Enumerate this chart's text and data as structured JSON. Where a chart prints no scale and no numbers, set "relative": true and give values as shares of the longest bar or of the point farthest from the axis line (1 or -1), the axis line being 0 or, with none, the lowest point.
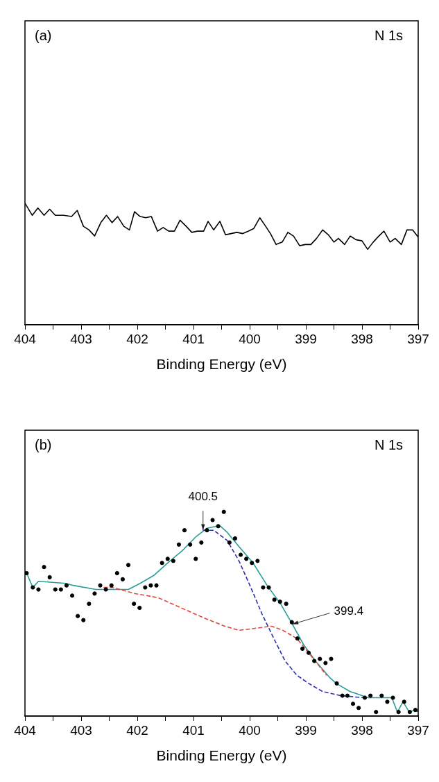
{
  "chart_data": [
    {
      "type": "line",
      "relative": true,
      "color": "#000000",
      "xlabel": "Binding Energy (eV)",
      "annotations": [
        "(a)",
        "N 1s"
      ],
      "xlim": [
        404,
        397
      ],
      "xticks": [
        404,
        {
          "value": 403.5,
          "label": null
        },
        403,
        {
          "value": 402.5,
          "label": null
        },
        402,
        {
          "value": 401.5,
          "label": null
        },
        401,
        {
          "value": 400.5,
          "label": null
        },
        400,
        {
          "value": 399.5,
          "label": null
        },
        399,
        {
          "value": 398.5,
          "label": null
        },
        398,
        {
          "value": 397.5,
          "label": null
        },
        397
      ],
      "x": [
        404.0,
        403.87,
        403.77,
        403.66,
        403.56,
        403.46,
        403.31,
        403.17,
        403.07,
        402.96,
        402.86,
        402.76,
        402.65,
        402.55,
        402.45,
        402.35,
        402.24,
        402.14,
        402.05,
        401.95,
        401.85,
        401.75,
        401.64,
        401.54,
        401.44,
        401.34,
        401.24,
        401.13,
        401.03,
        400.93,
        400.82,
        400.74,
        400.64,
        400.53,
        400.43,
        400.33,
        400.23,
        400.12,
        400.02,
        399.93,
        399.82,
        399.73,
        399.63,
        399.53,
        399.42,
        399.32,
        399.22,
        399.11,
        399.01,
        398.91,
        398.81,
        398.7,
        398.6,
        398.5,
        398.42,
        398.31,
        398.21,
        398.11,
        398.0,
        397.9,
        397.8,
        397.7,
        397.61,
        397.5,
        397.41,
        397.3,
        397.2,
        397.1,
        397.0
      ],
      "values": [
        1.0,
        0.9,
        0.96,
        0.9,
        0.95,
        0.9,
        0.9,
        0.89,
        0.94,
        0.81,
        0.78,
        0.73,
        0.84,
        0.9,
        0.84,
        0.89,
        0.81,
        0.78,
        0.93,
        0.89,
        0.88,
        0.89,
        0.77,
        0.8,
        0.77,
        0.77,
        0.86,
        0.81,
        0.76,
        0.77,
        0.77,
        0.85,
        0.78,
        0.85,
        0.74,
        0.75,
        0.76,
        0.75,
        0.77,
        0.79,
        0.88,
        0.82,
        0.75,
        0.66,
        0.68,
        0.76,
        0.73,
        0.65,
        0.66,
        0.66,
        0.71,
        0.78,
        0.74,
        0.68,
        0.71,
        0.66,
        0.73,
        0.7,
        0.69,
        0.62,
        0.68,
        0.73,
        0.77,
        0.68,
        0.71,
        0.66,
        0.78,
        0.78,
        0.72
      ]
    },
    {
      "type": "line",
      "relative": true,
      "xlabel": "Binding Energy (eV)",
      "annotations": [
        "(b)",
        "N 1s",
        {
          "text": "400.5",
          "x": 400.83,
          "y": 0.91
        },
        {
          "text": "399.4",
          "x": 399.24,
          "y": 0.45
        }
      ],
      "xlim": [
        404,
        397
      ],
      "xticks": [
        404,
        {
          "value": 403.5,
          "label": null
        },
        403,
        {
          "value": 402.5,
          "label": null
        },
        402,
        {
          "value": 401.5,
          "label": null
        },
        401,
        {
          "value": 400.5,
          "label": null
        },
        400,
        {
          "value": 399.5,
          "label": null
        },
        399,
        {
          "value": 398.5,
          "label": null
        },
        398,
        {
          "value": 397.5,
          "label": null
        },
        397
      ],
      "series": [
        {
          "type": "scatter",
          "marker": "circle",
          "color": "#000000",
          "x": [
            403.97,
            403.86,
            403.76,
            403.66,
            403.56,
            403.46,
            403.36,
            403.26,
            403.16,
            403.06,
            402.96,
            402.86,
            402.76,
            402.66,
            402.56,
            402.46,
            402.36,
            402.26,
            402.16,
            402.06,
            401.96,
            401.86,
            401.76,
            401.66,
            401.56,
            401.46,
            401.36,
            401.26,
            401.16,
            401.06,
            400.96,
            400.86,
            400.76,
            400.66,
            400.56,
            400.46,
            400.36,
            400.26,
            400.16,
            400.06,
            399.96,
            399.86,
            399.76,
            399.66,
            399.56,
            399.46,
            399.35,
            399.25,
            399.15,
            399.06,
            398.95,
            398.85,
            398.75,
            398.65,
            398.55,
            398.45,
            398.35,
            398.26,
            398.16,
            398.06,
            397.95,
            397.85,
            397.75,
            397.65,
            397.55,
            397.45,
            397.35,
            397.25,
            397.15,
            397.05
          ],
          "values": [
            0.7,
            0.63,
            0.62,
            0.73,
            0.68,
            0.62,
            0.62,
            0.64,
            0.59,
            0.49,
            0.47,
            0.55,
            0.6,
            0.64,
            0.62,
            0.64,
            0.7,
            0.67,
            0.74,
            0.55,
            0.53,
            0.63,
            0.64,
            0.64,
            0.75,
            0.77,
            0.76,
            0.84,
            0.91,
            0.84,
            0.77,
            0.85,
            0.91,
            0.96,
            0.93,
            1.0,
            0.85,
            0.87,
            0.79,
            0.77,
            0.75,
            0.76,
            0.63,
            0.63,
            0.57,
            0.56,
            0.55,
            0.46,
            0.38,
            0.33,
            0.31,
            0.27,
            0.28,
            0.26,
            0.28,
            0.16,
            0.1,
            0.1,
            0.06,
            0.04,
            0.09,
            0.1,
            0.02,
            0.1,
            0.07,
            0.09,
            0.02,
            0.07,
            0.02,
            0.03
          ]
        },
        {
          "type": "line",
          "marker": "none",
          "line_style": "dashed",
          "color": "#e0473a",
          "x": [
            402.6,
            402.45,
            402.04,
            401.63,
            401.22,
            400.81,
            400.44,
            400.19,
            399.9,
            399.61,
            399.41,
            399.16,
            398.95,
            398.75,
            398.63
          ],
          "values": [
            0.63,
            0.63,
            0.6,
            0.58,
            0.53,
            0.48,
            0.44,
            0.42,
            0.43,
            0.44,
            0.42,
            0.38,
            0.31,
            0.24,
            0.2
          ]
        },
        {
          "type": "line",
          "marker": "none",
          "line_style": "dashed",
          "color": "#2b2fb0",
          "x": [
            400.83,
            400.64,
            400.4,
            400.19,
            399.98,
            399.78,
            399.57,
            399.37,
            399.16,
            398.95,
            398.7,
            398.38,
            397.97
          ],
          "values": [
            0.91,
            0.91,
            0.86,
            0.76,
            0.63,
            0.5,
            0.38,
            0.27,
            0.2,
            0.16,
            0.12,
            0.1,
            0.09
          ]
        },
        {
          "type": "line",
          "marker": "none",
          "line_style": "solid",
          "color": "#2a9d9a",
          "x": [
            403.97,
            403.86,
            403.76,
            403.27,
            403.14,
            402.74,
            402.16,
            401.95,
            401.7,
            401.46,
            401.2,
            400.95,
            400.76,
            400.58,
            400.52,
            400.4,
            400.19,
            399.94,
            399.69,
            399.45,
            399.24,
            399.04,
            398.83,
            398.58,
            398.46,
            398.21,
            397.89,
            397.47,
            397.37,
            397.27,
            397.16,
            397.05,
            397.0
          ],
          "values": [
            0.7,
            0.63,
            0.66,
            0.65,
            0.64,
            0.62,
            0.62,
            0.65,
            0.69,
            0.75,
            0.81,
            0.88,
            0.92,
            0.93,
            0.93,
            0.9,
            0.83,
            0.75,
            0.64,
            0.55,
            0.45,
            0.35,
            0.27,
            0.19,
            0.16,
            0.12,
            0.09,
            0.09,
            0.02,
            0.07,
            0.02,
            0.03,
            0.02
          ]
        }
      ]
    }
  ]
}
